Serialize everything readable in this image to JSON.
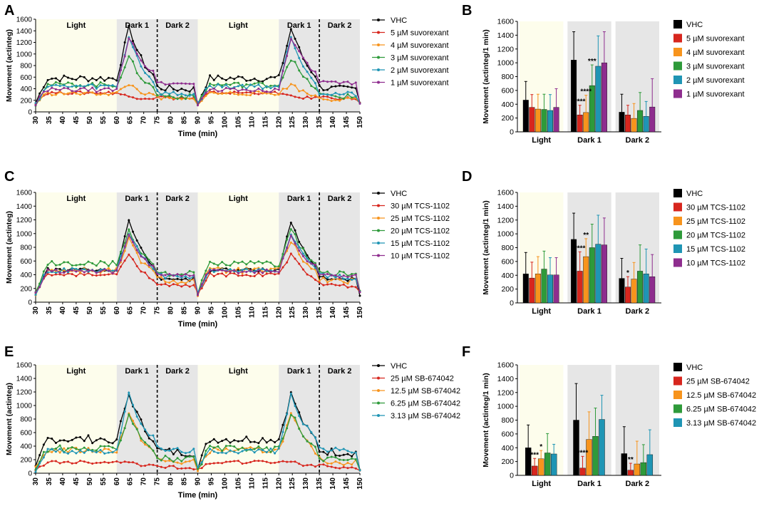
{
  "colors": {
    "vhc": "#000000",
    "red": "#d7261e",
    "orange": "#f7941d",
    "green": "#2e9a3a",
    "teal": "#1f95b4",
    "purple": "#8e2d8e",
    "light_bg": "#fdfdec",
    "dark_bg": "#e6e6e6"
  },
  "chart_data": [
    {
      "panel": "A",
      "type": "line",
      "ylabel": "Movement (actinteg)",
      "xlabel": "Time (min)",
      "ylim": [
        0,
        1600
      ],
      "yticks": [
        0,
        200,
        400,
        600,
        800,
        1000,
        1200,
        1400,
        1600
      ],
      "xlim": [
        30,
        150
      ],
      "xticks": [
        30,
        35,
        40,
        45,
        50,
        55,
        60,
        65,
        70,
        75,
        80,
        85,
        90,
        95,
        100,
        105,
        110,
        115,
        120,
        125,
        130,
        135,
        140,
        145,
        150
      ],
      "phases": [
        {
          "label": "Light",
          "from": 30,
          "to": 60,
          "kind": "light"
        },
        {
          "label": "Dark 1",
          "from": 60,
          "to": 75,
          "kind": "dark"
        },
        {
          "label": "Dark 2",
          "from": 75,
          "to": 90,
          "kind": "dark"
        },
        {
          "label": "Light",
          "from": 90,
          "to": 120,
          "kind": "light"
        },
        {
          "label": "Dark 1",
          "from": 120,
          "to": 135,
          "kind": "dark"
        },
        {
          "label": "Dark 2",
          "from": 135,
          "to": 150,
          "kind": "dark"
        }
      ],
      "dashed_at": [
        75,
        135
      ],
      "series": [
        {
          "name": "VHC",
          "color": "vhc",
          "baseline": 430,
          "light": 580,
          "peak": 1430,
          "dark2": 390,
          "noise": 60
        },
        {
          "name": "5 µM suvorexant",
          "color": "red",
          "baseline": 430,
          "light": 330,
          "peak": 260,
          "dark2": 230,
          "noise": 25
        },
        {
          "name": "4 µM suvorexant",
          "color": "orange",
          "baseline": 430,
          "light": 320,
          "peak": 480,
          "dark2": 210,
          "noise": 35
        },
        {
          "name": "3 µM suvorexant",
          "color": "green",
          "baseline": 420,
          "light": 470,
          "peak": 930,
          "dark2": 260,
          "noise": 45
        },
        {
          "name": "2 µM suvorexant",
          "color": "teal",
          "baseline": 420,
          "light": 440,
          "peak": 1290,
          "dark2": 300,
          "noise": 45
        },
        {
          "name": "1 µM suvorexant",
          "color": "purple",
          "baseline": 420,
          "light": 380,
          "peak": 1300,
          "dark2": 480,
          "noise": 40
        }
      ]
    },
    {
      "panel": "B",
      "type": "bar",
      "ylabel": "Movement (actinteg/1 min)",
      "ylim": [
        0,
        1600
      ],
      "yticks": [
        0,
        200,
        400,
        600,
        800,
        1000,
        1200,
        1400,
        1600
      ],
      "categories": [
        "Light",
        "Dark 1",
        "Dark 2"
      ],
      "category_bg": [
        "light",
        "dark",
        "dark"
      ],
      "series": [
        {
          "name": "VHC",
          "color": "vhc",
          "values": [
            460,
            1040,
            285
          ],
          "errors": [
            270,
            410,
            260
          ]
        },
        {
          "name": "5 µM suvorexant",
          "color": "red",
          "values": [
            355,
            245,
            245
          ],
          "errors": [
            185,
            140,
            140
          ]
        },
        {
          "name": "4 µM suvorexant",
          "color": "orange",
          "values": [
            330,
            280,
            195
          ],
          "errors": [
            215,
            250,
            215
          ]
        },
        {
          "name": "3 µM suvorexant",
          "color": "green",
          "values": [
            325,
            670,
            310
          ],
          "errors": [
            220,
            300,
            260
          ]
        },
        {
          "name": "2 µM suvorexant",
          "color": "teal",
          "values": [
            310,
            950,
            225
          ],
          "errors": [
            230,
            440,
            215
          ]
        },
        {
          "name": "1 µM suvorexant",
          "color": "purple",
          "values": [
            355,
            1000,
            360
          ],
          "errors": [
            270,
            450,
            410
          ]
        }
      ],
      "annotations": [
        {
          "category": 1,
          "series": 1,
          "text": "****"
        },
        {
          "category": 1,
          "series": 2,
          "text": "****"
        },
        {
          "category": 1,
          "series": 3,
          "text": "***"
        }
      ]
    },
    {
      "panel": "C",
      "type": "line",
      "ylabel": "Movement (actinteg)",
      "xlabel": "Time (min)",
      "ylim": [
        0,
        1600
      ],
      "yticks": [
        0,
        200,
        400,
        600,
        800,
        1000,
        1200,
        1400,
        1600
      ],
      "xlim": [
        30,
        150
      ],
      "xticks": [
        30,
        35,
        40,
        45,
        50,
        55,
        60,
        65,
        70,
        75,
        80,
        85,
        90,
        95,
        100,
        105,
        110,
        115,
        120,
        125,
        130,
        135,
        140,
        145,
        150
      ],
      "phases": [
        {
          "label": "Light",
          "from": 30,
          "to": 60,
          "kind": "light"
        },
        {
          "label": "Dark 1",
          "from": 60,
          "to": 75,
          "kind": "dark"
        },
        {
          "label": "Dark 2",
          "from": 75,
          "to": 90,
          "kind": "dark"
        },
        {
          "label": "Light",
          "from": 90,
          "to": 120,
          "kind": "light"
        },
        {
          "label": "Dark 1",
          "from": 120,
          "to": 135,
          "kind": "dark"
        },
        {
          "label": "Dark 2",
          "from": 135,
          "to": 150,
          "kind": "dark"
        }
      ],
      "dashed_at": [
        75,
        135
      ],
      "series": [
        {
          "name": "VHC",
          "color": "vhc",
          "baseline": 350,
          "light": 470,
          "peak": 1180,
          "dark2": 330,
          "noise": 30
        },
        {
          "name": "30 µM TCS-1102",
          "color": "red",
          "baseline": 350,
          "light": 400,
          "peak": 700,
          "dark2": 230,
          "noise": 25
        },
        {
          "name": "25 µM TCS-1102",
          "color": "orange",
          "baseline": 350,
          "light": 460,
          "peak": 900,
          "dark2": 300,
          "noise": 45
        },
        {
          "name": "20 µM TCS-1102",
          "color": "green",
          "baseline": 350,
          "light": 560,
          "peak": 1050,
          "dark2": 410,
          "noise": 45
        },
        {
          "name": "15 µM TCS-1102",
          "color": "teal",
          "baseline": 350,
          "light": 460,
          "peak": 1010,
          "dark2": 360,
          "noise": 35
        },
        {
          "name": "10 µM TCS-1102",
          "color": "purple",
          "baseline": 350,
          "light": 450,
          "peak": 960,
          "dark2": 380,
          "noise": 30
        }
      ]
    },
    {
      "panel": "D",
      "type": "bar",
      "ylabel": "Movement (actinteg/1 min)",
      "ylim": [
        0,
        1600
      ],
      "yticks": [
        0,
        200,
        400,
        600,
        800,
        1000,
        1200,
        1400,
        1600
      ],
      "categories": [
        "Light",
        "Dark 1",
        "Dark 2"
      ],
      "category_bg": [
        "light",
        "dark",
        "dark"
      ],
      "series": [
        {
          "name": "VHC",
          "color": "vhc",
          "values": [
            420,
            920,
            355
          ],
          "errors": [
            310,
            380,
            290
          ]
        },
        {
          "name": "30 µM TCS-1102",
          "color": "red",
          "values": [
            360,
            460,
            230
          ],
          "errors": [
            230,
            280,
            150
          ]
        },
        {
          "name": "25 µM TCS-1102",
          "color": "orange",
          "values": [
            420,
            670,
            345
          ],
          "errors": [
            250,
            260,
            240
          ]
        },
        {
          "name": "20 µM TCS-1102",
          "color": "green",
          "values": [
            490,
            800,
            460
          ],
          "errors": [
            260,
            340,
            380
          ]
        },
        {
          "name": "15 µM TCS-1102",
          "color": "teal",
          "values": [
            405,
            850,
            420
          ],
          "errors": [
            250,
            420,
            360
          ]
        },
        {
          "name": "10 µM TCS-1102",
          "color": "purple",
          "values": [
            405,
            840,
            380
          ],
          "errors": [
            250,
            390,
            320
          ]
        }
      ],
      "annotations": [
        {
          "category": 1,
          "series": 1,
          "text": "****"
        },
        {
          "category": 1,
          "series": 2,
          "text": "**"
        },
        {
          "category": 2,
          "series": 1,
          "text": "*"
        }
      ]
    },
    {
      "panel": "E",
      "type": "line",
      "ylabel": "Movement (actinteg)",
      "xlabel": "Time (min)",
      "ylim": [
        0,
        1600
      ],
      "yticks": [
        0,
        200,
        400,
        600,
        800,
        1000,
        1200,
        1400,
        1600
      ],
      "xlim": [
        30,
        150
      ],
      "xticks": [
        30,
        35,
        40,
        45,
        50,
        55,
        60,
        65,
        70,
        75,
        80,
        85,
        90,
        95,
        100,
        105,
        110,
        115,
        120,
        125,
        130,
        135,
        140,
        145,
        150
      ],
      "phases": [
        {
          "label": "Light",
          "from": 30,
          "to": 60,
          "kind": "light"
        },
        {
          "label": "Dark 1",
          "from": 60,
          "to": 75,
          "kind": "dark"
        },
        {
          "label": "Dark 2",
          "from": 75,
          "to": 90,
          "kind": "dark"
        },
        {
          "label": "Light",
          "from": 90,
          "to": 120,
          "kind": "light"
        },
        {
          "label": "Dark 1",
          "from": 120,
          "to": 135,
          "kind": "dark"
        },
        {
          "label": "Dark 2",
          "from": 135,
          "to": 150,
          "kind": "dark"
        }
      ],
      "dashed_at": [
        75,
        135
      ],
      "series": [
        {
          "name": "VHC",
          "color": "vhc",
          "baseline": 150,
          "light": 500,
          "peak": 1160,
          "dark2": 300,
          "noise": 60
        },
        {
          "name": "25 µM SB-674042",
          "color": "red",
          "baseline": 120,
          "light": 160,
          "peak": 180,
          "dark2": 80,
          "noise": 25
        },
        {
          "name": "12.5 µM SB-674042",
          "color": "orange",
          "baseline": 150,
          "light": 340,
          "peak": 860,
          "dark2": 160,
          "noise": 45
        },
        {
          "name": "6.25 µM SB-674042",
          "color": "green",
          "baseline": 150,
          "light": 360,
          "peak": 880,
          "dark2": 200,
          "noise": 50
        },
        {
          "name": "3.13 µM SB-674042",
          "color": "teal",
          "baseline": 150,
          "light": 330,
          "peak": 1150,
          "dark2": 330,
          "noise": 40
        }
      ]
    },
    {
      "panel": "F",
      "type": "bar",
      "ylabel": "Movement (actinteg/1 min)",
      "ylim": [
        0,
        1600
      ],
      "yticks": [
        0,
        200,
        400,
        600,
        800,
        1000,
        1200,
        1400,
        1600
      ],
      "categories": [
        "Light",
        "Dark 1",
        "Dark 2"
      ],
      "category_bg": [
        "light",
        "dark",
        "dark"
      ],
      "series": [
        {
          "name": "VHC",
          "color": "vhc",
          "values": [
            400,
            800,
            315
          ],
          "errors": [
            330,
            530,
            390
          ]
        },
        {
          "name": "25 µM SB-674042",
          "color": "red",
          "values": [
            135,
            105,
            75
          ],
          "errors": [
            110,
            170,
            100
          ]
        },
        {
          "name": "12.5 µM SB-674042",
          "color": "orange",
          "values": [
            240,
            520,
            165
          ],
          "errors": [
            120,
            400,
            330
          ]
        },
        {
          "name": "6.25 µM SB-674042",
          "color": "green",
          "values": [
            325,
            565,
            185
          ],
          "errors": [
            280,
            410,
            260
          ]
        },
        {
          "name": "3.13 µM SB-674042",
          "color": "teal",
          "values": [
            310,
            810,
            300
          ],
          "errors": [
            140,
            350,
            360
          ]
        }
      ],
      "annotations": [
        {
          "category": 0,
          "series": 1,
          "text": "***"
        },
        {
          "category": 0,
          "series": 2,
          "text": "*"
        },
        {
          "category": 1,
          "series": 1,
          "text": "****"
        },
        {
          "category": 2,
          "series": 1,
          "text": "**"
        }
      ]
    }
  ]
}
